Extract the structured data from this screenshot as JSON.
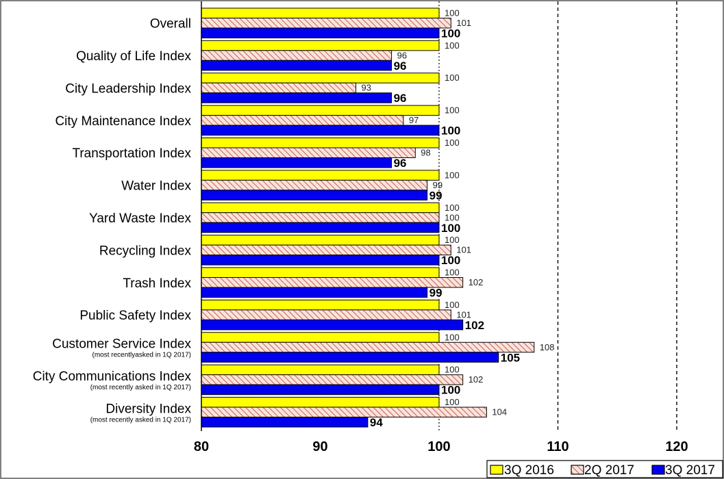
{
  "chart_data": {
    "type": "bar",
    "orientation": "horizontal",
    "categories": [
      {
        "label": "Overall",
        "note": ""
      },
      {
        "label": "Quality of Life Index",
        "note": ""
      },
      {
        "label": "City Leadership Index",
        "note": ""
      },
      {
        "label": "City Maintenance Index",
        "note": ""
      },
      {
        "label": "Transportation Index",
        "note": ""
      },
      {
        "label": "Water Index",
        "note": ""
      },
      {
        "label": "Yard Waste Index",
        "note": ""
      },
      {
        "label": "Recycling Index",
        "note": ""
      },
      {
        "label": "Trash Index",
        "note": ""
      },
      {
        "label": "Public Safety Index",
        "note": ""
      },
      {
        "label": "Customer Service Index",
        "note": "(most recentlyasked in 1Q 2017)"
      },
      {
        "label": "City Communications Index",
        "note": "(most recently asked in 1Q 2017)"
      },
      {
        "label": "Diversity Index",
        "note": "(most recently asked in 1Q 2017)"
      }
    ],
    "series": [
      {
        "name": "3Q 2016",
        "color": "#ffff00",
        "pattern": "solid",
        "values": [
          100,
          100,
          100,
          100,
          100,
          100,
          100,
          100,
          100,
          100,
          100,
          100,
          100
        ]
      },
      {
        "name": "2Q 2017",
        "color": "#f7c9c0",
        "pattern": "hatched",
        "values": [
          101,
          96,
          93,
          97,
          98,
          99,
          100,
          101,
          102,
          101,
          108,
          102,
          104
        ]
      },
      {
        "name": "3Q 2017",
        "color": "#0000ee",
        "pattern": "solid",
        "values": [
          100,
          96,
          96,
          100,
          96,
          99,
          100,
          100,
          99,
          102,
          105,
          100,
          94
        ]
      }
    ],
    "xlim": [
      80,
      120
    ],
    "xticks": [
      "80",
      "90",
      "100",
      "110",
      "120"
    ],
    "grid_lines": [
      110,
      120
    ],
    "legend": "bottom-right",
    "title": "",
    "xlabel": "",
    "ylabel": ""
  }
}
